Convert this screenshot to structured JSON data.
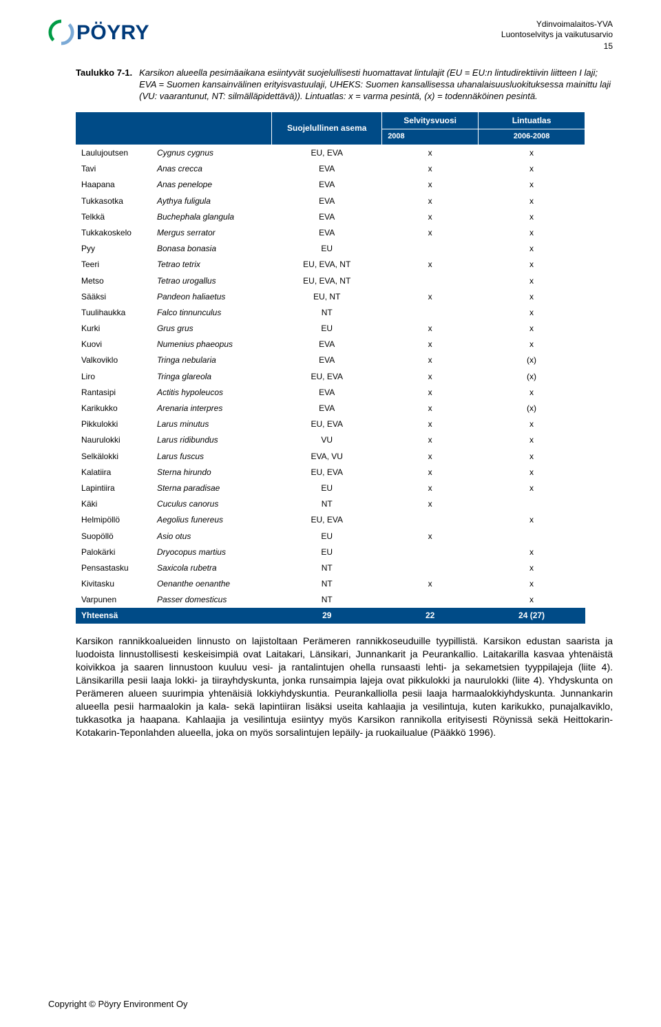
{
  "logo": {
    "brand": "PÖYRY",
    "brand_color": "#003a7a",
    "ring_outer": "#7aa9d6",
    "ring_inner": "#009b45"
  },
  "header_meta": {
    "l1": "Ydinvoimalaitos-YVA",
    "l2": "Luontoselvitys ja vaikutusarvio",
    "pagenum": "15"
  },
  "caption": {
    "label": "Taulukko 7-1.",
    "body": "Karsikon alueella pesimäaikana esiintyvät suojelullisesti huomattavat lintulajit (EU = EU:n lintudirektiivin liitteen I laji; EVA = Suomen kansainvälinen erityisvastuulaji, UHEKS: Suomen kansallisessa uhanalaisuusluokituksessa mainittu laji (VU: vaarantunut, NT: silmälläpidettävä)). Lintuatlas: x = varma pesintä, (x) = todennäköinen pesintä."
  },
  "table": {
    "head": {
      "suojelullinen": "Suojelullinen asema",
      "selvitys": "Selvitysvuosi",
      "atlas": "Lintuatlas",
      "yr1": "2008",
      "yr2": "2006-2008"
    },
    "rows": [
      {
        "fi": "Laulujoutsen",
        "sci": "Cygnus cygnus",
        "st": "EU, EVA",
        "y": "x",
        "a": "x"
      },
      {
        "fi": "Tavi",
        "sci": "Anas crecca",
        "st": "EVA",
        "y": "x",
        "a": "x"
      },
      {
        "fi": "Haapana",
        "sci": "Anas penelope",
        "st": "EVA",
        "y": "x",
        "a": "x"
      },
      {
        "fi": "Tukkasotka",
        "sci": "Aythya fuligula",
        "st": "EVA",
        "y": "x",
        "a": "x"
      },
      {
        "fi": "Telkkä",
        "sci": "Buchephala glangula",
        "st": "EVA",
        "y": "x",
        "a": "x"
      },
      {
        "fi": "Tukkakoskelo",
        "sci": "Mergus serrator",
        "st": "EVA",
        "y": "x",
        "a": "x"
      },
      {
        "fi": "Pyy",
        "sci": "Bonasa bonasia",
        "st": "EU",
        "y": "",
        "a": "x"
      },
      {
        "fi": "Teeri",
        "sci": "Tetrao tetrix",
        "st": "EU, EVA, NT",
        "y": "x",
        "a": "x"
      },
      {
        "fi": "Metso",
        "sci": "Tetrao urogallus",
        "st": "EU, EVA, NT",
        "y": "",
        "a": "x"
      },
      {
        "fi": "Sääksi",
        "sci": "Pandeon haliaetus",
        "st": "EU, NT",
        "y": "x",
        "a": "x"
      },
      {
        "fi": "Tuulihaukka",
        "sci": "Falco tinnunculus",
        "st": "NT",
        "y": "",
        "a": "x"
      },
      {
        "fi": "Kurki",
        "sci": "Grus grus",
        "st": "EU",
        "y": "x",
        "a": "x"
      },
      {
        "fi": "Kuovi",
        "sci": "Numenius phaeopus",
        "st": "EVA",
        "y": "x",
        "a": "x"
      },
      {
        "fi": "Valkoviklo",
        "sci": "Tringa nebularia",
        "st": "EVA",
        "y": "x",
        "a": "(x)"
      },
      {
        "fi": "Liro",
        "sci": "Tringa glareola",
        "st": "EU, EVA",
        "y": "x",
        "a": "(x)"
      },
      {
        "fi": "Rantasipi",
        "sci": "Actitis hypoleucos",
        "st": "EVA",
        "y": "x",
        "a": "x"
      },
      {
        "fi": "Karikukko",
        "sci": "Arenaria interpres",
        "st": "EVA",
        "y": "x",
        "a": "(x)"
      },
      {
        "fi": "Pikkulokki",
        "sci": "Larus minutus",
        "st": "EU, EVA",
        "y": "x",
        "a": "x"
      },
      {
        "fi": "Naurulokki",
        "sci": "Larus ridibundus",
        "st": "VU",
        "y": "x",
        "a": "x"
      },
      {
        "fi": "Selkälokki",
        "sci": "Larus fuscus",
        "st": "EVA, VU",
        "y": "x",
        "a": "x"
      },
      {
        "fi": "Kalatiira",
        "sci": "Sterna hirundo",
        "st": "EU, EVA",
        "y": "x",
        "a": "x"
      },
      {
        "fi": "Lapintiira",
        "sci": "Sterna paradisae",
        "st": "EU",
        "y": "x",
        "a": "x"
      },
      {
        "fi": "Käki",
        "sci": "Cuculus canorus",
        "st": "NT",
        "y": "x",
        "a": ""
      },
      {
        "fi": "Helmipöllö",
        "sci": "Aegolius funereus",
        "st": "EU, EVA",
        "y": "",
        "a": "x"
      },
      {
        "fi": "Suopöllö",
        "sci": "Asio otus",
        "st": "EU",
        "y": "x",
        "a": ""
      },
      {
        "fi": "Palokärki",
        "sci": "Dryocopus martius",
        "st": "EU",
        "y": "",
        "a": "x"
      },
      {
        "fi": "Pensastasku",
        "sci": "Saxicola rubetra",
        "st": "NT",
        "y": "",
        "a": "x"
      },
      {
        "fi": "Kivitasku",
        "sci": "Oenanthe oenanthe",
        "st": "NT",
        "y": "x",
        "a": "x"
      },
      {
        "fi": "Varpunen",
        "sci": "Passer domesticus",
        "st": "NT",
        "y": "",
        "a": "x"
      }
    ],
    "total": {
      "label": "Yhteensä",
      "st": "29",
      "y": "22",
      "a": "24 (27)"
    }
  },
  "paragraph": "Karsikon rannikkoalueiden linnusto on lajistoltaan Perämeren rannikkoseuduille tyypillistä. Karsikon edustan saarista ja luodoista linnustollisesti keskeisimpiä ovat Laitakari, Länsikari, Junnankarit ja Peurankallio. Laitakarilla kasvaa yhtenäistä koivikkoa ja saaren linnustoon kuuluu vesi- ja rantalintujen ohella runsaasti lehti- ja sekametsien tyyppilajeja (liite 4). Länsikarilla pesii laaja lokki- ja tiirayhdyskunta, jonka runsaimpia lajeja ovat pikkulokki ja naurulokki (liite 4). Yhdyskunta on Perämeren alueen suurimpia yhtenäisiä lokkiyhdyskuntia. Peurankalliolla pesii laaja harmaalokkiyhdyskunta. Junnankarin alueella pesii harmaalokin ja kala- sekä lapintiiran lisäksi useita kahlaajia ja vesilintuja, kuten karikukko, punajalkaviklo, tukkasotka ja haapana. Kahlaajia ja vesilintuja esiintyy myös Karsikon rannikolla erityisesti Röynissä sekä Heittokarin- Kotakarin-Teponlahden alueella, joka on myös sorsalintujen lepäily- ja ruokailualue (Pääkkö 1996).",
  "footer": "Copyright © Pöyry Environment Oy"
}
